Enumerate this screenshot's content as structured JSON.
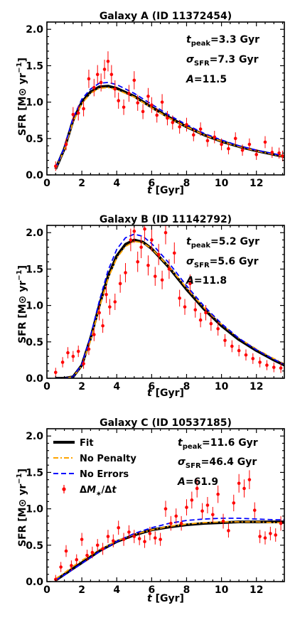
{
  "chart_data": [
    {
      "type": "scatter",
      "title": "Galaxy A (ID 11372454)",
      "xlabel": "t [Gyr]",
      "ylabel": "SFR [M⊙ yr⁻¹]",
      "xlim": [
        0,
        13.6
      ],
      "ylim": [
        0,
        2.1
      ],
      "xticks": [
        "0",
        "2",
        "4",
        "6",
        "8",
        "10",
        "12"
      ],
      "yticks": [
        "0.0",
        "0.5",
        "1.0",
        "1.5",
        "2.0"
      ],
      "annotations": {
        "tpeak": "=3.3 Gyr",
        "sigma": "=7.3 Gyr",
        "A": "=11.5"
      },
      "model": {
        "tpeak": 3.3,
        "sigma": 7.3,
        "amp": 11.5
      },
      "series": [
        {
          "name": "Fit",
          "x": [
            0.5,
            1.0,
            1.5,
            2.0,
            2.5,
            3.0,
            3.5,
            4.0,
            5.0,
            6.0,
            7.0,
            8.0,
            9.0,
            10.0,
            11.0,
            12.0,
            13.0,
            13.6
          ],
          "y": [
            0.08,
            0.36,
            0.75,
            1.0,
            1.14,
            1.21,
            1.22,
            1.19,
            1.08,
            0.93,
            0.79,
            0.66,
            0.55,
            0.46,
            0.39,
            0.33,
            0.28,
            0.25
          ]
        },
        {
          "name": "No Penalty",
          "x": [
            0.5,
            1.0,
            1.5,
            2.0,
            2.5,
            3.0,
            3.5,
            4.0,
            5.0,
            6.0,
            7.0,
            8.0,
            9.0,
            10.0,
            11.0,
            12.0,
            13.0,
            13.6
          ],
          "y": [
            0.08,
            0.35,
            0.73,
            0.98,
            1.12,
            1.19,
            1.2,
            1.17,
            1.07,
            0.92,
            0.78,
            0.66,
            0.55,
            0.46,
            0.39,
            0.33,
            0.28,
            0.25
          ]
        },
        {
          "name": "No Errors",
          "x": [
            0.5,
            1.0,
            1.5,
            2.0,
            2.5,
            3.0,
            3.5,
            4.0,
            5.0,
            6.0,
            7.0,
            8.0,
            9.0,
            10.0,
            11.0,
            12.0,
            13.0,
            13.6
          ],
          "y": [
            0.09,
            0.38,
            0.78,
            1.04,
            1.18,
            1.26,
            1.27,
            1.24,
            1.12,
            0.97,
            0.82,
            0.69,
            0.57,
            0.48,
            0.4,
            0.34,
            0.29,
            0.26
          ]
        },
        {
          "name": "ΔM*/Δt",
          "x": [
            0.5,
            1.1,
            1.5,
            1.8,
            2.1,
            2.4,
            2.7,
            2.9,
            3.1,
            3.3,
            3.5,
            3.7,
            3.9,
            4.1,
            4.4,
            4.7,
            5.0,
            5.2,
            5.5,
            5.8,
            6.0,
            6.3,
            6.6,
            6.9,
            7.2,
            7.6,
            8.0,
            8.4,
            8.8,
            9.2,
            9.6,
            10.0,
            10.4,
            10.8,
            11.2,
            11.6,
            12.0,
            12.5,
            12.9,
            13.3,
            13.5
          ],
          "y": [
            0.12,
            0.42,
            0.83,
            0.85,
            0.91,
            1.32,
            1.2,
            1.38,
            1.27,
            1.45,
            1.56,
            1.38,
            1.18,
            1.02,
            0.93,
            1.12,
            1.3,
            0.99,
            0.87,
            1.08,
            0.96,
            0.82,
            1.0,
            0.78,
            0.72,
            0.66,
            0.69,
            0.55,
            0.63,
            0.47,
            0.52,
            0.42,
            0.36,
            0.5,
            0.34,
            0.42,
            0.28,
            0.45,
            0.31,
            0.3,
            0.26
          ]
        }
      ]
    },
    {
      "type": "scatter",
      "title": "Galaxy B (ID 11142792)",
      "xlabel": "t [Gyr]",
      "ylabel": "SFR [M⊙ yr⁻¹]",
      "xlim": [
        0,
        13.6
      ],
      "ylim": [
        0,
        2.1
      ],
      "xticks": [
        "0",
        "2",
        "4",
        "6",
        "8",
        "10",
        "12"
      ],
      "yticks": [
        "0.0",
        "0.5",
        "1.0",
        "1.5",
        "2.0"
      ],
      "annotations": {
        "tpeak": "=5.2 Gyr",
        "sigma": "=5.6 Gyr",
        "A": "=11.8"
      },
      "model": {
        "tpeak": 5.2,
        "sigma": 5.6,
        "amp": 11.8
      },
      "series": [
        {
          "name": "Fit",
          "x": [
            0.5,
            1.0,
            1.5,
            2.0,
            2.5,
            3.0,
            3.5,
            4.0,
            4.5,
            5.0,
            5.5,
            6.0,
            7.0,
            8.0,
            9.0,
            10.0,
            11.0,
            12.0,
            13.0,
            13.6
          ],
          "y": [
            0.0,
            0.0,
            0.02,
            0.18,
            0.55,
            1.0,
            1.4,
            1.68,
            1.84,
            1.9,
            1.87,
            1.78,
            1.52,
            1.22,
            0.95,
            0.72,
            0.53,
            0.38,
            0.25,
            0.18
          ]
        },
        {
          "name": "No Penalty",
          "x": [
            0.5,
            1.0,
            1.5,
            2.0,
            2.5,
            3.0,
            3.5,
            4.0,
            4.5,
            5.0,
            5.5,
            6.0,
            7.0,
            8.0,
            9.0,
            10.0,
            11.0,
            12.0,
            13.0,
            13.6
          ],
          "y": [
            0.0,
            0.0,
            0.02,
            0.17,
            0.52,
            0.97,
            1.37,
            1.65,
            1.81,
            1.88,
            1.86,
            1.78,
            1.53,
            1.24,
            0.97,
            0.74,
            0.55,
            0.4,
            0.27,
            0.2
          ]
        },
        {
          "name": "No Errors",
          "x": [
            0.5,
            1.0,
            1.5,
            2.0,
            2.5,
            3.0,
            3.5,
            4.0,
            4.5,
            5.0,
            5.5,
            6.0,
            7.0,
            8.0,
            9.0,
            10.0,
            11.0,
            12.0,
            13.0,
            13.6
          ],
          "y": [
            0.0,
            0.0,
            0.02,
            0.19,
            0.58,
            1.06,
            1.48,
            1.77,
            1.93,
            1.98,
            1.95,
            1.85,
            1.58,
            1.27,
            0.99,
            0.75,
            0.55,
            0.39,
            0.26,
            0.19
          ]
        },
        {
          "name": "ΔM*/Δt",
          "x": [
            0.5,
            0.9,
            1.2,
            1.5,
            1.8,
            2.1,
            2.4,
            2.7,
            3.0,
            3.2,
            3.4,
            3.6,
            3.9,
            4.2,
            4.5,
            4.8,
            5.0,
            5.2,
            5.4,
            5.6,
            5.8,
            6.0,
            6.2,
            6.4,
            6.6,
            6.8,
            7.0,
            7.3,
            7.6,
            7.9,
            8.2,
            8.5,
            8.8,
            9.1,
            9.4,
            9.8,
            10.2,
            10.6,
            11.0,
            11.4,
            11.8,
            12.2,
            12.6,
            13.0,
            13.4
          ],
          "y": [
            0.08,
            0.22,
            0.35,
            0.3,
            0.37,
            0.2,
            0.4,
            0.6,
            0.9,
            0.72,
            1.15,
            0.98,
            1.05,
            1.3,
            1.45,
            1.9,
            2.02,
            1.6,
            1.8,
            2.05,
            1.55,
            1.9,
            1.4,
            1.7,
            1.35,
            2.0,
            1.5,
            1.72,
            1.1,
            0.98,
            1.3,
            0.94,
            0.8,
            0.9,
            0.75,
            0.68,
            0.52,
            0.44,
            0.38,
            0.32,
            0.27,
            0.22,
            0.18,
            0.15,
            0.14
          ]
        }
      ]
    },
    {
      "type": "scatter",
      "title": "Galaxy C (ID 10537185)",
      "xlabel": "t [Gyr]",
      "ylabel": "SFR [M⊙ yr⁻¹]",
      "xlim": [
        0,
        13.6
      ],
      "ylim": [
        0,
        2.1
      ],
      "xticks": [
        "0",
        "2",
        "4",
        "6",
        "8",
        "10",
        "12"
      ],
      "yticks": [
        "0.0",
        "0.5",
        "1.0",
        "1.5",
        "2.0"
      ],
      "annotations": {
        "tpeak": "=11.6 Gyr",
        "sigma": "=46.4 Gyr",
        "A": "=61.9"
      },
      "legend": {
        "location": "upper-left",
        "entries": [
          "Fit",
          "No Penalty",
          "No Errors",
          "ΔM*/Δt"
        ]
      },
      "model": {
        "tpeak": 11.6,
        "sigma": 46.4,
        "amp": 61.9
      },
      "series": [
        {
          "name": "Fit",
          "x": [
            0.5,
            1.0,
            1.5,
            2.0,
            3.0,
            4.0,
            5.0,
            6.0,
            7.0,
            8.0,
            9.0,
            10.0,
            11.0,
            12.0,
            13.0,
            13.6
          ],
          "y": [
            0.02,
            0.1,
            0.18,
            0.26,
            0.42,
            0.55,
            0.64,
            0.71,
            0.75,
            0.78,
            0.8,
            0.81,
            0.82,
            0.82,
            0.82,
            0.82
          ]
        },
        {
          "name": "No Penalty",
          "x": [
            0.5,
            1.0,
            1.5,
            2.0,
            3.0,
            4.0,
            5.0,
            6.0,
            7.0,
            8.0,
            9.0,
            10.0,
            11.0,
            12.0,
            13.0,
            13.6
          ],
          "y": [
            0.04,
            0.12,
            0.21,
            0.29,
            0.44,
            0.56,
            0.65,
            0.71,
            0.76,
            0.79,
            0.81,
            0.82,
            0.82,
            0.82,
            0.81,
            0.81
          ]
        },
        {
          "name": "No Errors",
          "x": [
            0.5,
            1.0,
            1.5,
            2.0,
            3.0,
            4.0,
            5.0,
            6.0,
            7.0,
            8.0,
            9.0,
            10.0,
            11.0,
            12.0,
            13.0,
            13.6
          ],
          "y": [
            0.02,
            0.09,
            0.17,
            0.25,
            0.41,
            0.55,
            0.66,
            0.74,
            0.8,
            0.84,
            0.86,
            0.87,
            0.87,
            0.86,
            0.85,
            0.85
          ]
        },
        {
          "name": "ΔM*/Δt",
          "x": [
            0.5,
            0.8,
            1.1,
            1.4,
            1.7,
            2.0,
            2.3,
            2.6,
            2.9,
            3.2,
            3.5,
            3.8,
            4.1,
            4.4,
            4.7,
            5.0,
            5.3,
            5.6,
            5.9,
            6.2,
            6.5,
            6.8,
            7.1,
            7.4,
            7.7,
            8.0,
            8.3,
            8.6,
            8.9,
            9.2,
            9.5,
            9.8,
            10.1,
            10.4,
            10.7,
            11.0,
            11.3,
            11.6,
            11.9,
            12.2,
            12.5,
            12.8,
            13.1,
            13.4
          ],
          "y": [
            0.03,
            0.2,
            0.42,
            0.22,
            0.3,
            0.58,
            0.36,
            0.4,
            0.5,
            0.45,
            0.62,
            0.56,
            0.74,
            0.58,
            0.68,
            0.62,
            0.59,
            0.55,
            0.66,
            0.6,
            0.58,
            1.0,
            0.8,
            0.9,
            0.8,
            1.02,
            1.12,
            1.28,
            0.97,
            1.05,
            0.92,
            1.2,
            0.83,
            0.7,
            1.08,
            1.35,
            1.28,
            1.4,
            0.98,
            0.62,
            0.6,
            0.66,
            0.64,
            0.8
          ]
        }
      ]
    }
  ]
}
